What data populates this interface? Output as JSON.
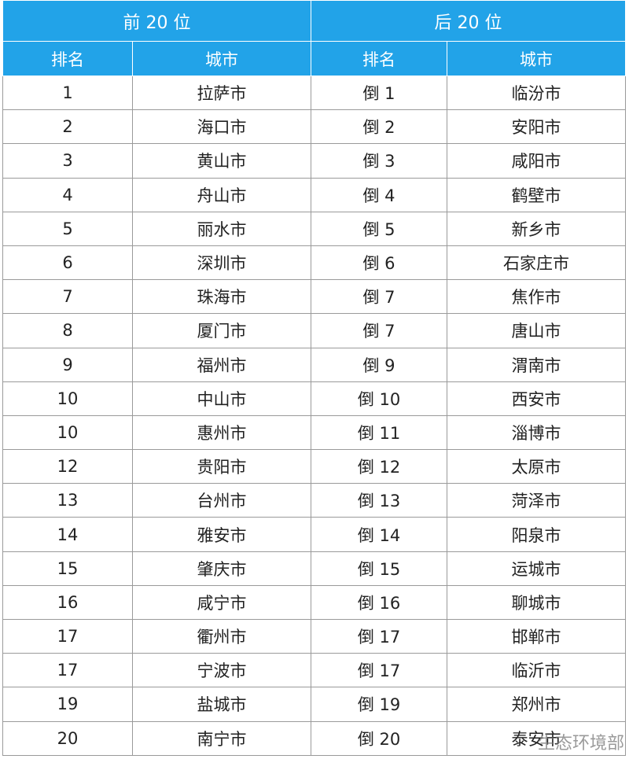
{
  "table": {
    "groups": [
      "前 20 位",
      "后 20 位"
    ],
    "columns": [
      "排名",
      "城市",
      "排名",
      "城市"
    ],
    "rows": [
      [
        "1",
        "拉萨市",
        "倒 1",
        "临汾市"
      ],
      [
        "2",
        "海口市",
        "倒 2",
        "安阳市"
      ],
      [
        "3",
        "黄山市",
        "倒 3",
        "咸阳市"
      ],
      [
        "4",
        "舟山市",
        "倒 4",
        "鹤壁市"
      ],
      [
        "5",
        "丽水市",
        "倒 5",
        "新乡市"
      ],
      [
        "6",
        "深圳市",
        "倒 6",
        "石家庄市"
      ],
      [
        "7",
        "珠海市",
        "倒 7",
        "焦作市"
      ],
      [
        "8",
        "厦门市",
        "倒 7",
        "唐山市"
      ],
      [
        "9",
        "福州市",
        "倒 9",
        "渭南市"
      ],
      [
        "10",
        "中山市",
        "倒 10",
        "西安市"
      ],
      [
        "10",
        "惠州市",
        "倒 11",
        "淄博市"
      ],
      [
        "12",
        "贵阳市",
        "倒 12",
        "太原市"
      ],
      [
        "13",
        "台州市",
        "倒 13",
        "菏泽市"
      ],
      [
        "14",
        "雅安市",
        "倒 14",
        "阳泉市"
      ],
      [
        "15",
        "肇庆市",
        "倒 15",
        "运城市"
      ],
      [
        "16",
        "咸宁市",
        "倒 16",
        "聊城市"
      ],
      [
        "17",
        "衢州市",
        "倒 17",
        "邯郸市"
      ],
      [
        "17",
        "宁波市",
        "倒 17",
        "临沂市"
      ],
      [
        "19",
        "盐城市",
        "倒 19",
        "郑州市"
      ],
      [
        "20",
        "南宁市",
        "倒 20",
        "泰安市"
      ]
    ]
  },
  "watermark": "生态环境部"
}
